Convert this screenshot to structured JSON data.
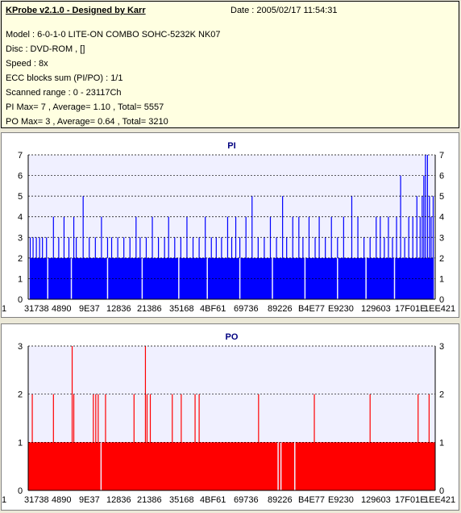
{
  "header": {
    "title": "KProbe v2.1.0 - Designed by Karr",
    "date": "Date : 2005/02/17 11:54:31",
    "lines": [
      "Model : 6-0-1-0 LITE-ON COMBO SOHC-5232K NK07",
      "Disc : DVD-ROM ,  []",
      "Speed : 8x",
      "ECC blocks sum (PI/PO) : 1/1",
      "Scanned range : 0 - 23117Ch",
      "PI Max= 7 , Average= 1.10 , Total= 5557",
      "PO Max= 3 , Average= 0.64 , Total= 3210"
    ]
  },
  "colors": {
    "pi": "#0000ff",
    "po": "#ff0000",
    "plot_bg": "#f0f0ff",
    "title": "#000080"
  },
  "chart_data": [
    {
      "type": "bar",
      "title": "PI",
      "ylim": [
        0,
        7
      ],
      "yticks": [
        0,
        1,
        2,
        3,
        4,
        5,
        6,
        7
      ],
      "xtick_labels": [
        "1",
        "31738",
        "4890",
        "9E37",
        "12836",
        "21386",
        "35168",
        "4BF61",
        "69736",
        "89226",
        "B4E77",
        "E9230",
        "129603",
        "17F01E",
        "1EE421"
      ],
      "baseline": 2,
      "spikes": [
        {
          "x": 0.005,
          "v": 3
        },
        {
          "x": 0.012,
          "v": 3
        },
        {
          "x": 0.02,
          "v": 3
        },
        {
          "x": 0.028,
          "v": 3
        },
        {
          "x": 0.035,
          "v": 3
        },
        {
          "x": 0.045,
          "v": 3
        },
        {
          "x": 0.062,
          "v": 4
        },
        {
          "x": 0.075,
          "v": 3
        },
        {
          "x": 0.088,
          "v": 4
        },
        {
          "x": 0.1,
          "v": 3
        },
        {
          "x": 0.112,
          "v": 4
        },
        {
          "x": 0.118,
          "v": 3
        },
        {
          "x": 0.135,
          "v": 5
        },
        {
          "x": 0.15,
          "v": 3
        },
        {
          "x": 0.165,
          "v": 3
        },
        {
          "x": 0.18,
          "v": 4
        },
        {
          "x": 0.195,
          "v": 3
        },
        {
          "x": 0.205,
          "v": 3
        },
        {
          "x": 0.22,
          "v": 3
        },
        {
          "x": 0.235,
          "v": 3
        },
        {
          "x": 0.25,
          "v": 3
        },
        {
          "x": 0.265,
          "v": 4
        },
        {
          "x": 0.275,
          "v": 3
        },
        {
          "x": 0.29,
          "v": 3
        },
        {
          "x": 0.305,
          "v": 4
        },
        {
          "x": 0.32,
          "v": 3
        },
        {
          "x": 0.335,
          "v": 3
        },
        {
          "x": 0.345,
          "v": 4
        },
        {
          "x": 0.36,
          "v": 3
        },
        {
          "x": 0.375,
          "v": 3
        },
        {
          "x": 0.39,
          "v": 4
        },
        {
          "x": 0.405,
          "v": 3
        },
        {
          "x": 0.42,
          "v": 3
        },
        {
          "x": 0.435,
          "v": 4
        },
        {
          "x": 0.45,
          "v": 3
        },
        {
          "x": 0.462,
          "v": 3
        },
        {
          "x": 0.475,
          "v": 3
        },
        {
          "x": 0.49,
          "v": 4
        },
        {
          "x": 0.5,
          "v": 3
        },
        {
          "x": 0.51,
          "v": 4
        },
        {
          "x": 0.52,
          "v": 3
        },
        {
          "x": 0.535,
          "v": 4
        },
        {
          "x": 0.55,
          "v": 5
        },
        {
          "x": 0.565,
          "v": 3
        },
        {
          "x": 0.58,
          "v": 3
        },
        {
          "x": 0.595,
          "v": 4
        },
        {
          "x": 0.61,
          "v": 3
        },
        {
          "x": 0.625,
          "v": 5
        },
        {
          "x": 0.635,
          "v": 3
        },
        {
          "x": 0.65,
          "v": 4
        },
        {
          "x": 0.665,
          "v": 4
        },
        {
          "x": 0.675,
          "v": 3
        },
        {
          "x": 0.69,
          "v": 4
        },
        {
          "x": 0.705,
          "v": 3
        },
        {
          "x": 0.715,
          "v": 4
        },
        {
          "x": 0.73,
          "v": 3
        },
        {
          "x": 0.745,
          "v": 4
        },
        {
          "x": 0.76,
          "v": 3
        },
        {
          "x": 0.775,
          "v": 4
        },
        {
          "x": 0.795,
          "v": 5
        },
        {
          "x": 0.81,
          "v": 4
        },
        {
          "x": 0.825,
          "v": 3
        },
        {
          "x": 0.84,
          "v": 3
        },
        {
          "x": 0.855,
          "v": 4
        },
        {
          "x": 0.865,
          "v": 4
        },
        {
          "x": 0.875,
          "v": 3
        },
        {
          "x": 0.885,
          "v": 4
        },
        {
          "x": 0.895,
          "v": 3
        },
        {
          "x": 0.905,
          "v": 4
        },
        {
          "x": 0.915,
          "v": 6
        },
        {
          "x": 0.925,
          "v": 3
        },
        {
          "x": 0.935,
          "v": 4
        },
        {
          "x": 0.945,
          "v": 4
        },
        {
          "x": 0.955,
          "v": 5
        },
        {
          "x": 0.963,
          "v": 4
        },
        {
          "x": 0.968,
          "v": 5
        },
        {
          "x": 0.972,
          "v": 6
        },
        {
          "x": 0.976,
          "v": 7
        },
        {
          "x": 0.981,
          "v": 7
        },
        {
          "x": 0.986,
          "v": 5
        },
        {
          "x": 0.99,
          "v": 4
        },
        {
          "x": 0.995,
          "v": 5
        }
      ],
      "gaps": [
        0.002,
        0.048,
        0.106,
        0.195,
        0.28,
        0.37,
        0.44,
        0.52,
        0.6,
        0.68,
        0.76,
        0.83,
        0.9,
        0.998
      ]
    },
    {
      "type": "bar",
      "title": "PO",
      "ylim": [
        0,
        3
      ],
      "yticks": [
        0,
        1,
        2,
        3
      ],
      "xtick_labels": [
        "1",
        "31738",
        "4890",
        "9E37",
        "12836",
        "21386",
        "35168",
        "4BF61",
        "69736",
        "89226",
        "B4E77",
        "E9230",
        "129603",
        "17F01E",
        "1EE421"
      ],
      "baseline": 1,
      "spikes": [
        {
          "x": 0.01,
          "v": 2
        },
        {
          "x": 0.062,
          "v": 2
        },
        {
          "x": 0.108,
          "v": 3
        },
        {
          "x": 0.112,
          "v": 2
        },
        {
          "x": 0.16,
          "v": 2
        },
        {
          "x": 0.166,
          "v": 2
        },
        {
          "x": 0.172,
          "v": 2
        },
        {
          "x": 0.19,
          "v": 2
        },
        {
          "x": 0.26,
          "v": 2
        },
        {
          "x": 0.288,
          "v": 3
        },
        {
          "x": 0.292,
          "v": 2
        },
        {
          "x": 0.3,
          "v": 2
        },
        {
          "x": 0.354,
          "v": 2
        },
        {
          "x": 0.376,
          "v": 2
        },
        {
          "x": 0.41,
          "v": 2
        },
        {
          "x": 0.42,
          "v": 2
        },
        {
          "x": 0.566,
          "v": 2
        },
        {
          "x": 0.703,
          "v": 2
        },
        {
          "x": 0.84,
          "v": 2
        },
        {
          "x": 0.958,
          "v": 2
        },
        {
          "x": 0.985,
          "v": 2
        }
      ],
      "gaps": [
        0.179,
        0.614,
        0.621,
        0.655
      ]
    }
  ]
}
